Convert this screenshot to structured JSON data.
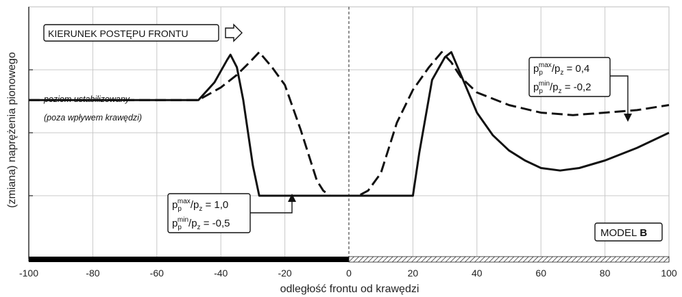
{
  "chart_data": {
    "type": "line",
    "xlabel": "odległość frontu od krawędzi",
    "ylabel": "(zmiana) naprężenia pionowego",
    "xlim": [
      -100,
      100
    ],
    "xticks": [
      -100,
      -80,
      -60,
      -40,
      -20,
      0,
      20,
      40,
      60,
      80,
      100
    ],
    "ylim": [
      0,
      10
    ],
    "grid": true,
    "series": [
      {
        "style": "solid",
        "x": [
          -100,
          -47,
          -42,
          -38,
          -37,
          -35,
          -33,
          -30,
          -28,
          -25,
          -18,
          -10,
          0,
          10,
          20,
          22,
          26,
          30,
          32,
          35,
          40,
          45,
          50,
          55,
          60,
          66,
          72,
          80,
          90,
          100
        ],
        "y": [
          6.3,
          6.3,
          7.0,
          7.9,
          8.1,
          7.6,
          6.3,
          3.7,
          2.5,
          2.5,
          2.5,
          2.5,
          2.5,
          2.5,
          2.5,
          4.2,
          7.1,
          8.0,
          8.2,
          7.3,
          5.8,
          4.9,
          4.3,
          3.9,
          3.6,
          3.5,
          3.6,
          3.9,
          4.4,
          5.0
        ]
      },
      {
        "style": "dashed",
        "x": [
          -100,
          -47,
          -40,
          -35,
          -31,
          -28,
          -24,
          -20,
          -15,
          -10,
          -8,
          -6,
          0,
          3,
          6,
          10,
          15,
          20,
          25,
          29,
          32,
          35,
          40,
          50,
          60,
          70,
          80,
          90,
          100
        ],
        "y": [
          6.3,
          6.3,
          6.8,
          7.3,
          7.8,
          8.2,
          7.6,
          6.9,
          5.1,
          3.1,
          2.7,
          2.5,
          2.5,
          2.5,
          2.7,
          3.4,
          5.4,
          6.7,
          7.6,
          8.2,
          7.8,
          7.2,
          6.6,
          6.1,
          5.8,
          5.7,
          5.8,
          5.9,
          6.1
        ]
      }
    ],
    "annotations": {
      "direction_label": "KIERUNEK POSTĘPU FRONTU",
      "level_line1": "poziom ustabilizowany",
      "level_line2": "(poza wpływem krawędzi)",
      "model_label": "MODEL",
      "model_bold": "B",
      "solid_ratio_max_value": " = 1,0",
      "solid_ratio_min_value": " = -0,5",
      "dashed_ratio_max_value": " = 0,4",
      "dashed_ratio_min_value": " = -0,2",
      "ratio_p": "p",
      "ratio_pz": "/p",
      "sub_p": "p",
      "sub_z": "z",
      "sup_max": "max",
      "sup_min": "min"
    }
  }
}
